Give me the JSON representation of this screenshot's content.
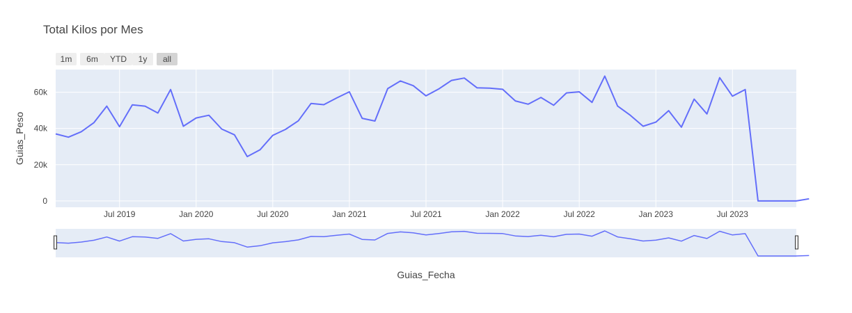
{
  "chart_data": {
    "type": "line",
    "title": "Total Kilos por Mes",
    "xlabel": "Guias_Fecha",
    "ylabel": "Guias_Peso",
    "x_start": "2019-02",
    "x_range": [
      "2019-02",
      "2023-12"
    ],
    "ylim": [
      -3500,
      72500
    ],
    "y_ticks": [
      0,
      20000,
      40000,
      60000
    ],
    "y_tick_labels": [
      "0",
      "20k",
      "40k",
      "60k"
    ],
    "x_ticks": [
      "2019-07",
      "2020-01",
      "2020-07",
      "2021-01",
      "2021-07",
      "2022-01",
      "2022-07",
      "2023-01",
      "2023-07"
    ],
    "x_tick_labels": [
      "Jul 2019",
      "Jan 2020",
      "Jul 2020",
      "Jan 2021",
      "Jul 2021",
      "Jan 2022",
      "Jul 2022",
      "Jan 2023",
      "Jul 2023"
    ],
    "values": [
      37000,
      35200,
      38200,
      43200,
      52300,
      41000,
      53000,
      52300,
      48500,
      61500,
      41200,
      45800,
      47300,
      39700,
      36500,
      24500,
      28200,
      36200,
      39500,
      44200,
      53800,
      53100,
      56800,
      60200,
      45600,
      44100,
      62000,
      66200,
      63600,
      58000,
      61800,
      66500,
      67800,
      62400,
      62200,
      61600,
      55200,
      53400,
      57100,
      52800,
      59600,
      60200,
      54400,
      68900,
      52400,
      47300,
      41200,
      43500,
      49800,
      40700,
      56200,
      48000,
      68000,
      57800,
      61500,
      0,
      0,
      0,
      0,
      1200
    ],
    "color": "#636efa",
    "grid": true,
    "legend": "none"
  },
  "range_selector": {
    "buttons": [
      "1m",
      "6m",
      "YTD",
      "1y",
      "all"
    ],
    "active": "all"
  },
  "colors": {
    "plot_bg": "#e5ecf6",
    "grid": "#ffffff",
    "line": "#636efa"
  }
}
